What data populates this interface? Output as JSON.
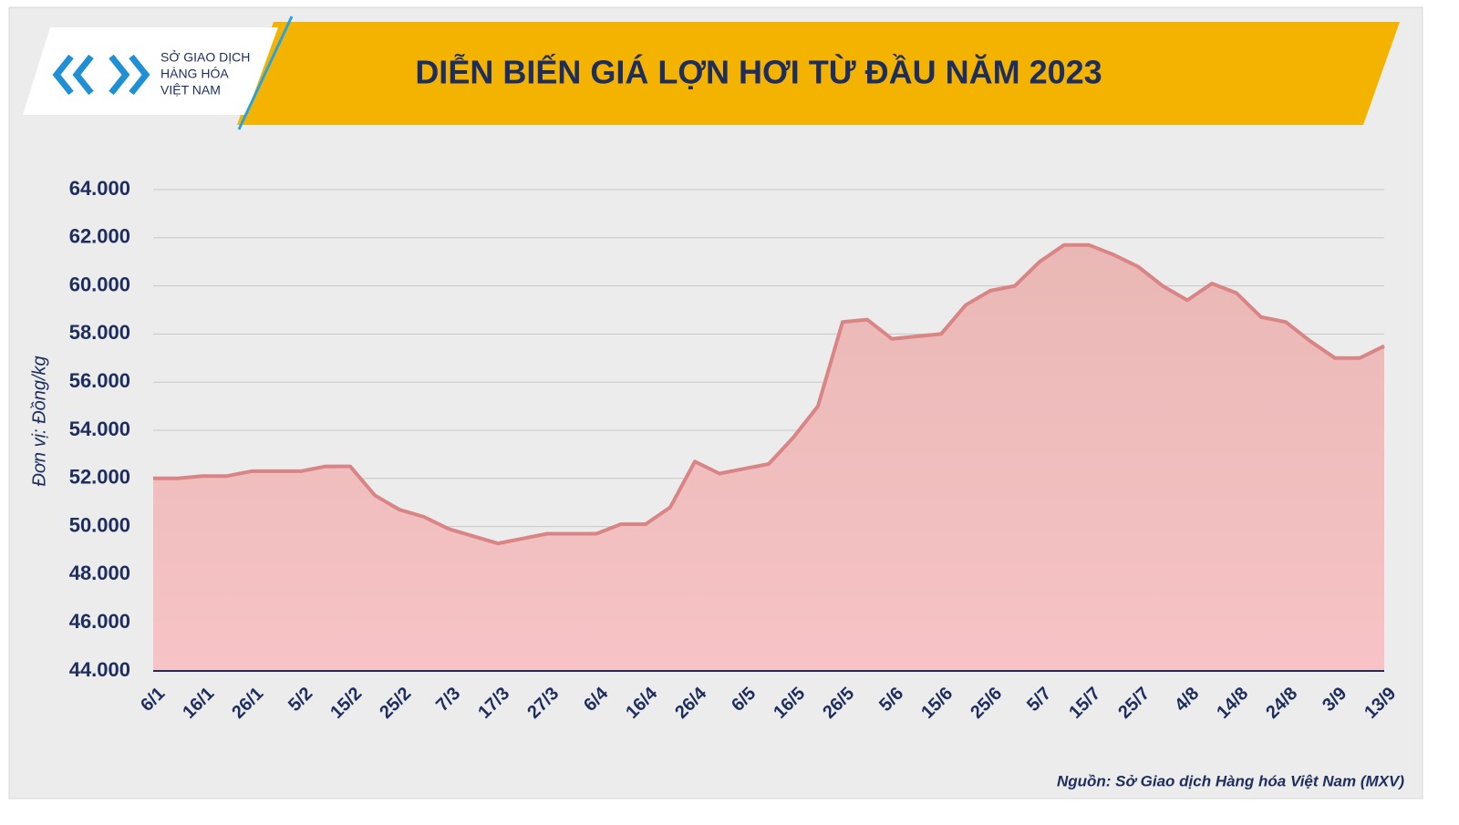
{
  "logo": {
    "lines": [
      "SỞ GIAO DỊCH",
      "HÀNG HÓA",
      "VIỆT NAM"
    ]
  },
  "chart_data": {
    "type": "area",
    "title": "DIỄN BIẾN GIÁ LỢN HƠI TỪ ĐẦU NĂM 2023",
    "y_label": "Đơn vị: Đồng/kg",
    "source": "Nguồn: Sở Giao dịch Hàng hóa Việt Nam (MXV)",
    "categories": [
      "6/1",
      null,
      "16/1",
      null,
      "26/1",
      null,
      "5/2",
      null,
      "15/2",
      null,
      "25/2",
      null,
      "7/3",
      null,
      "17/3",
      null,
      "27/3",
      null,
      "6/4",
      null,
      "16/4",
      null,
      "26/4",
      null,
      "6/5",
      null,
      "16/5",
      null,
      "26/5",
      null,
      "5/6",
      null,
      "15/6",
      null,
      "25/6",
      null,
      "5/7",
      null,
      "15/7",
      null,
      "25/7",
      null,
      "4/8",
      null,
      "14/8",
      null,
      "24/8",
      null,
      "3/9",
      null,
      "13/9"
    ],
    "values": [
      52000,
      52000,
      52100,
      52100,
      52300,
      52300,
      52300,
      52500,
      52500,
      51300,
      50700,
      50400,
      49900,
      49600,
      49300,
      49500,
      49700,
      49700,
      49700,
      50100,
      50100,
      50800,
      52700,
      52200,
      52400,
      52600,
      53700,
      55000,
      58500,
      58600,
      57800,
      57900,
      58000,
      59200,
      59800,
      60000,
      61000,
      61700,
      61700,
      61300,
      60800,
      60000,
      59400,
      60100,
      59700,
      58700,
      58500,
      57700,
      57000,
      57000,
      57500
    ],
    "color": "#d98585",
    "ylim": [
      44000,
      64000
    ],
    "yticks": [
      {
        "value": 44000,
        "label": "44.000"
      },
      {
        "value": 46000,
        "label": "46.000"
      },
      {
        "value": 48000,
        "label": "48.000"
      },
      {
        "value": 50000,
        "label": "50.000"
      },
      {
        "value": 52000,
        "label": "52.000"
      },
      {
        "value": 54000,
        "label": "54.000"
      },
      {
        "value": 56000,
        "label": "56.000"
      },
      {
        "value": 58000,
        "label": "58.000"
      },
      {
        "value": 60000,
        "label": "60.000"
      },
      {
        "value": 62000,
        "label": "62.000"
      },
      {
        "value": 64000,
        "label": "64.000"
      }
    ],
    "grid": true
  }
}
